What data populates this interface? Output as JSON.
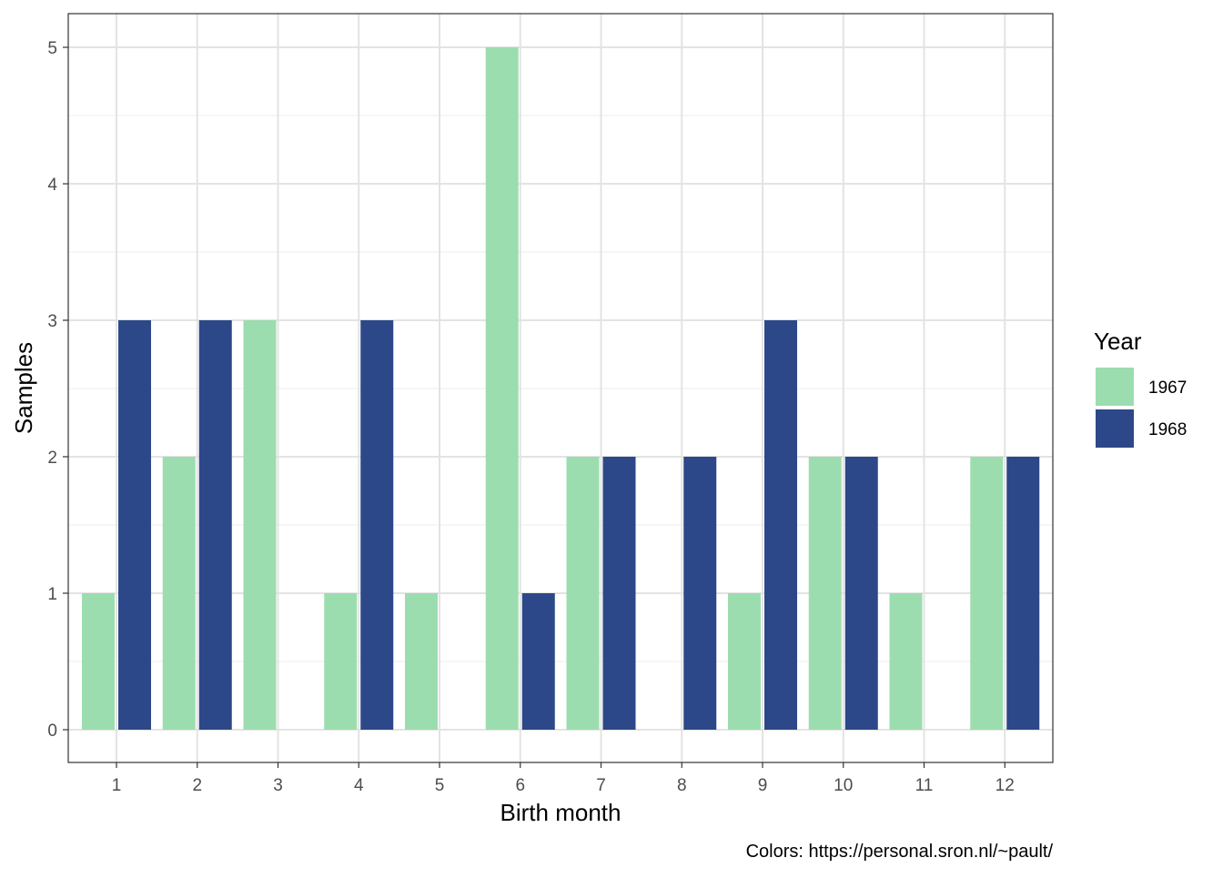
{
  "chart_data": {
    "type": "bar",
    "xlabel": "Birth month",
    "ylabel": "Samples",
    "categories": [
      "1",
      "2",
      "3",
      "4",
      "5",
      "6",
      "7",
      "8",
      "9",
      "10",
      "11",
      "12"
    ],
    "series": [
      {
        "name": "1967",
        "color": "#9CDDAF",
        "values": [
          1,
          2,
          3,
          1,
          1,
          5,
          2,
          null,
          1,
          2,
          1,
          2
        ]
      },
      {
        "name": "1968",
        "color": "#2C4889",
        "values": [
          3,
          3,
          null,
          3,
          null,
          1,
          2,
          2,
          3,
          2,
          null,
          2
        ]
      }
    ],
    "ylim": [
      0,
      5
    ],
    "yticks": [
      "0",
      "1",
      "2",
      "3",
      "4",
      "5"
    ],
    "grid": true,
    "legend": {
      "title": "Year",
      "position": "right"
    },
    "caption": "Colors: https://personal.sron.nl/~pault/"
  }
}
